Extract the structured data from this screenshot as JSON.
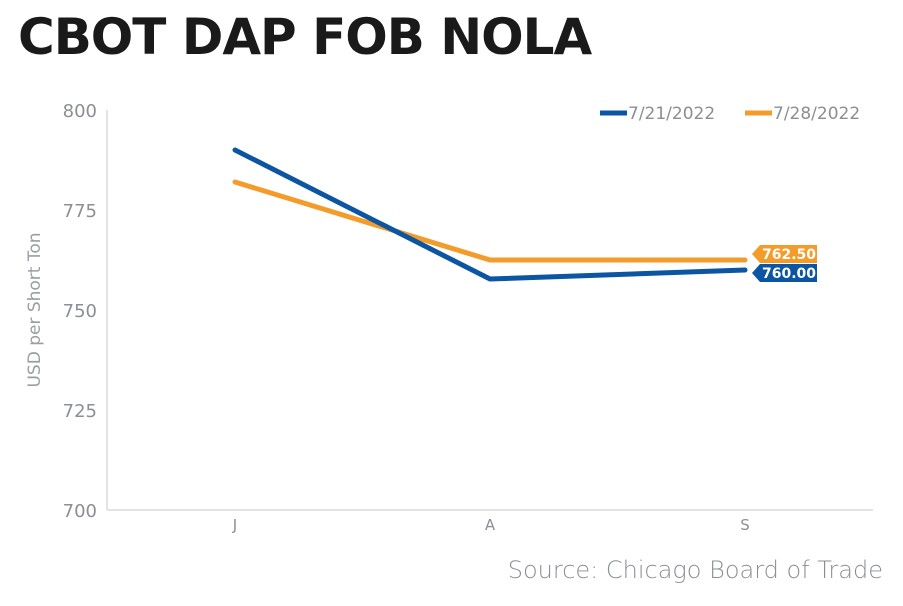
{
  "chart_data": {
    "type": "line",
    "title": "CBOT DAP FOB NOLA",
    "source": "Source: Chicago Board of Trade",
    "xlabel": "",
    "ylabel": "USD per Short Ton",
    "categories": [
      "J",
      "A",
      "S"
    ],
    "ylim": [
      700,
      800
    ],
    "yticks": [
      700,
      725,
      750,
      775,
      800
    ],
    "grid": false,
    "legend_position": "top-right",
    "series": [
      {
        "name": "7/21/2022",
        "color": "#0b55a3",
        "values": [
          790,
          757.75,
          760.0
        ],
        "end_label": "760.00"
      },
      {
        "name": "7/28/2022",
        "color": "#f39c2b",
        "values": [
          782,
          762.5,
          762.5
        ],
        "end_label": "762.50"
      }
    ]
  }
}
